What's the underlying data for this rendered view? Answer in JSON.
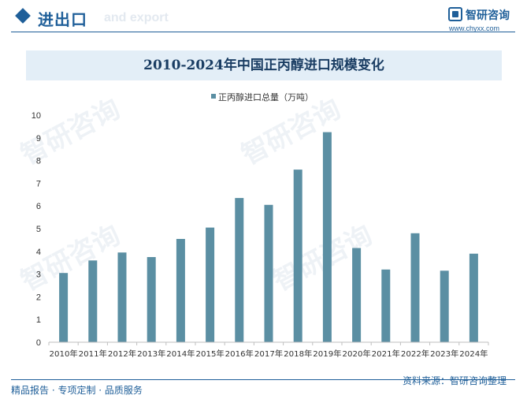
{
  "header": {
    "title": "进出口",
    "subtitle": "and export",
    "logo_text": "智研咨询",
    "logo_url": "www.chyxx.com"
  },
  "watermark_text": "智研咨询",
  "footer": {
    "left": "精品报告 · 专项定制 · 品质服务",
    "right": "资料来源：智研咨询整理"
  },
  "colors": {
    "brand": "#1f5f99",
    "bar": "#5b8fa3",
    "title_band": "#e3eef7"
  },
  "chart_data": {
    "type": "bar",
    "title": "2010-2024年中国正丙醇进口规模变化",
    "categories": [
      "2010年",
      "2011年",
      "2012年",
      "2013年",
      "2014年",
      "2015年",
      "2016年",
      "2017年",
      "2018年",
      "2019年",
      "2020年",
      "2021年",
      "2022年",
      "2023年",
      "2024年"
    ],
    "series": [
      {
        "name": "正丙醇进口总量（万吨）",
        "values": [
          3.05,
          3.6,
          3.95,
          3.75,
          4.55,
          5.05,
          6.35,
          6.05,
          7.6,
          9.25,
          4.15,
          3.2,
          4.8,
          3.15,
          3.9
        ]
      }
    ],
    "ylim": [
      0,
      10
    ],
    "yticks": [
      0,
      1,
      2,
      3,
      4,
      5,
      6,
      7,
      8,
      9,
      10
    ],
    "grid": false,
    "legend": "top"
  }
}
